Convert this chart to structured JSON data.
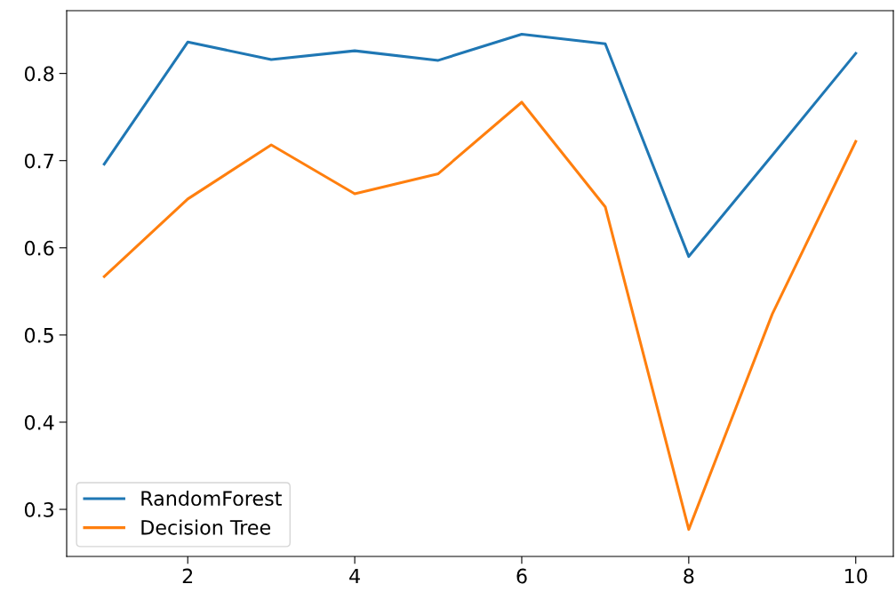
{
  "chart_data": {
    "type": "line",
    "x": [
      1,
      2,
      3,
      4,
      5,
      6,
      7,
      8,
      9,
      10
    ],
    "series": [
      {
        "name": "RandomForest",
        "color": "#1f77b4",
        "values": [
          0.696,
          0.836,
          0.816,
          0.826,
          0.815,
          0.845,
          0.834,
          0.59,
          0.706,
          0.823
        ]
      },
      {
        "name": "Decision Tree",
        "color": "#ff7f0e",
        "values": [
          0.567,
          0.656,
          0.718,
          0.662,
          0.685,
          0.767,
          0.647,
          0.277,
          0.524,
          0.722
        ]
      }
    ],
    "xlim": [
      0.55,
      10.45
    ],
    "ylim": [
      0.246,
      0.872
    ],
    "xticks": [
      2,
      4,
      6,
      8,
      10
    ],
    "yticks": [
      0.3,
      0.4,
      0.5,
      0.6,
      0.7,
      0.8
    ],
    "legend": "lower left",
    "grid": false,
    "marker": "none",
    "line_style": "solid"
  }
}
